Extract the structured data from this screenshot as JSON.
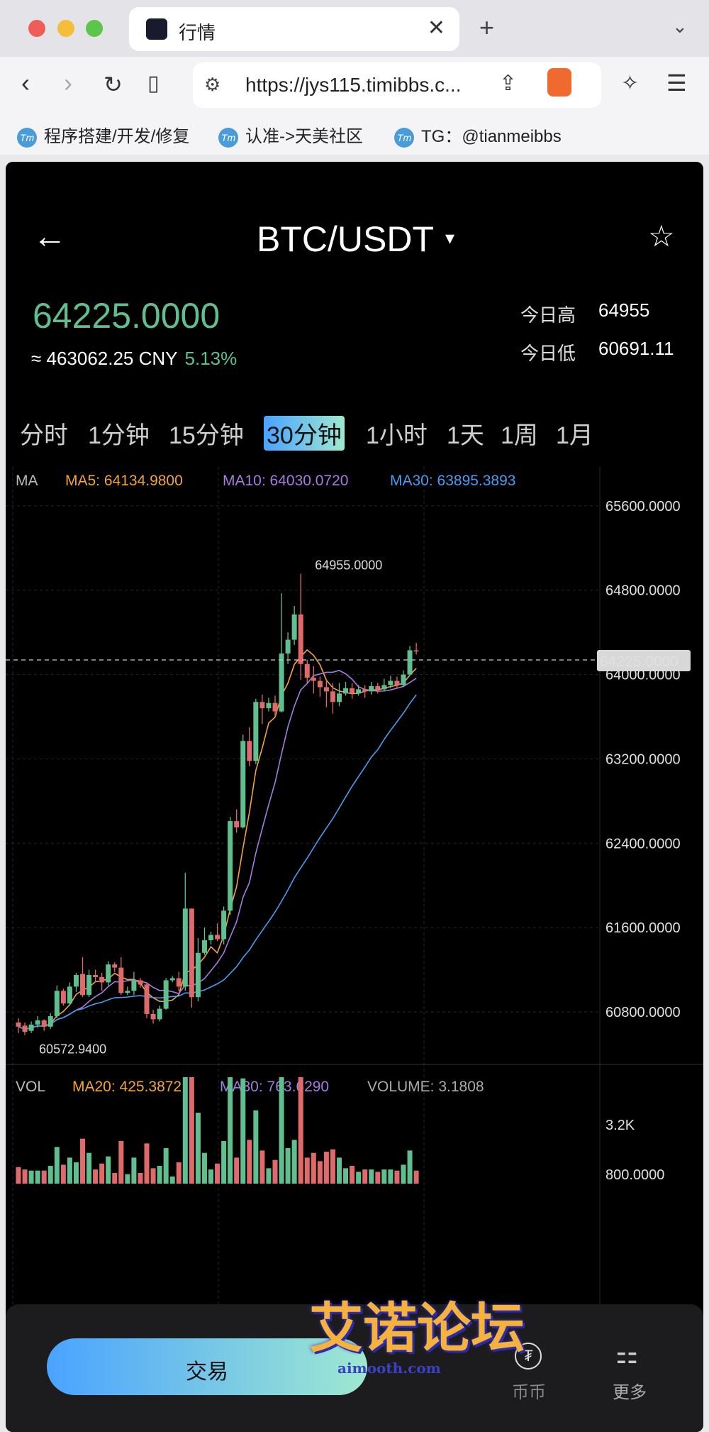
{
  "browser": {
    "tab_title": "行情",
    "url": "https://jys115.timibbs.c...",
    "bookmarks": [
      "程序搭建/开发/修复",
      "认准->天美社区",
      "TG：@tianmeibbs"
    ]
  },
  "header": {
    "back": "←",
    "symbol": "BTC/USDT",
    "dropdown": "▾",
    "star": "☆"
  },
  "ticker": {
    "price": "64225.0000",
    "cny": "≈ 463062.25 CNY",
    "change": "5.13%",
    "high_label": "今日高",
    "high": "64955",
    "low_label": "今日低",
    "low": "60691.11"
  },
  "periods": [
    "分时",
    "1分钟",
    "15分钟",
    "30分钟",
    "1小时",
    "1天",
    "1周",
    "1月"
  ],
  "active_period": "30分钟",
  "indicators": {
    "ma_title": "MA",
    "ma5": "MA5: 64134.9800",
    "ma10": "MA10: 64030.0720",
    "ma30": "MA30: 63895.3893",
    "vol_title": "VOL",
    "vol_ma20": "MA20: 425.3872",
    "vol_ma30": "MA30: 763.6290",
    "volume": "VOLUME: 3.1808",
    "max_label": "64955.0000",
    "min_label": "60572.9400",
    "current_label": "64225.0000"
  },
  "chart_data": {
    "type": "candlestick",
    "y_ticks": [
      "65600.0000",
      "64800.0000",
      "64000.0000",
      "63200.0000",
      "62400.0000",
      "61600.0000",
      "60800.0000"
    ],
    "y_range": [
      60450,
      65700
    ],
    "vol_ticks": [
      "3.2K",
      "800.0000"
    ],
    "colors": {
      "up": "#5fbf8e",
      "down": "#e06a6a",
      "ma5": "#f2a33a",
      "ma10": "#a77be0",
      "ma30": "#4a9cf0"
    },
    "candles": [
      [
        60700,
        60660,
        60740,
        60600
      ],
      [
        60670,
        60610,
        60700,
        60580
      ],
      [
        60620,
        60680,
        60710,
        60600
      ],
      [
        60680,
        60720,
        60760,
        60650
      ],
      [
        60720,
        60660,
        60730,
        60620
      ],
      [
        60660,
        60760,
        60790,
        60640
      ],
      [
        60760,
        61000,
        61050,
        60740
      ],
      [
        61000,
        60880,
        61020,
        60860
      ],
      [
        60880,
        61040,
        61080,
        60860
      ],
      [
        61040,
        61150,
        61170,
        60990
      ],
      [
        61160,
        60960,
        61320,
        60940
      ],
      [
        60960,
        61150,
        61200,
        60940
      ],
      [
        61150,
        61130,
        61200,
        61080
      ],
      [
        61130,
        61080,
        61170,
        61000
      ],
      [
        61080,
        61250,
        61280,
        61050
      ],
      [
        61250,
        61220,
        61270,
        61180
      ],
      [
        61220,
        60980,
        61320,
        60960
      ],
      [
        60980,
        61000,
        61040,
        60960
      ],
      [
        61000,
        61100,
        61180,
        60960
      ],
      [
        61100,
        61060,
        61120,
        61030
      ],
      [
        61060,
        60780,
        61080,
        60740
      ],
      [
        60780,
        60730,
        60820,
        60690
      ],
      [
        60730,
        60830,
        60860,
        60710
      ],
      [
        60830,
        61100,
        61120,
        60820
      ],
      [
        61100,
        61120,
        61140,
        61080
      ],
      [
        61120,
        61040,
        61180,
        61000
      ],
      [
        61040,
        61780,
        62120,
        61000
      ],
      [
        61780,
        60940,
        61780,
        60840
      ],
      [
        60940,
        61360,
        61500,
        60900
      ],
      [
        61360,
        61480,
        61600,
        61340
      ],
      [
        61480,
        61530,
        61560,
        61440
      ],
      [
        61530,
        61490,
        61640,
        61470
      ],
      [
        61490,
        61760,
        61800,
        61440
      ],
      [
        61760,
        62610,
        62650,
        61720
      ],
      [
        62610,
        62550,
        62720,
        62500
      ],
      [
        62550,
        63370,
        63430,
        62540
      ],
      [
        63370,
        63180,
        63500,
        63130
      ],
      [
        63180,
        63740,
        63770,
        63150
      ],
      [
        63740,
        63680,
        63810,
        63530
      ],
      [
        63680,
        63730,
        63780,
        63650
      ],
      [
        63730,
        63650,
        63800,
        63600
      ],
      [
        63650,
        64200,
        64770,
        63640
      ],
      [
        64200,
        64330,
        64400,
        64100
      ],
      [
        64330,
        64570,
        64650,
        64280
      ],
      [
        64570,
        64100,
        64955,
        63950
      ],
      [
        64100,
        63970,
        64140,
        63920
      ],
      [
        63970,
        63940,
        64080,
        63820
      ],
      [
        63940,
        63880,
        63980,
        63790
      ],
      [
        63880,
        63840,
        63960,
        63690
      ],
      [
        63840,
        63740,
        63920,
        63630
      ],
      [
        63740,
        63820,
        63920,
        63700
      ],
      [
        63820,
        63870,
        63930,
        63800
      ],
      [
        63870,
        63820,
        63920,
        63770
      ],
      [
        63820,
        63860,
        63900,
        63800
      ],
      [
        63860,
        63840,
        63900,
        63780
      ],
      [
        63840,
        63890,
        63930,
        63810
      ],
      [
        63890,
        63860,
        63920,
        63820
      ],
      [
        63860,
        63900,
        63960,
        63840
      ],
      [
        63900,
        63940,
        63990,
        63870
      ],
      [
        63940,
        63900,
        63980,
        63870
      ],
      [
        63900,
        64000,
        64040,
        63880
      ],
      [
        64000,
        64230,
        64270,
        63990
      ],
      [
        64230,
        64225,
        64300,
        64190
      ]
    ]
  },
  "bottom": {
    "trade": "交易",
    "currency": "币币",
    "more": "更多",
    "site": "aimooth.com"
  },
  "watermark": "艾诺论坛"
}
